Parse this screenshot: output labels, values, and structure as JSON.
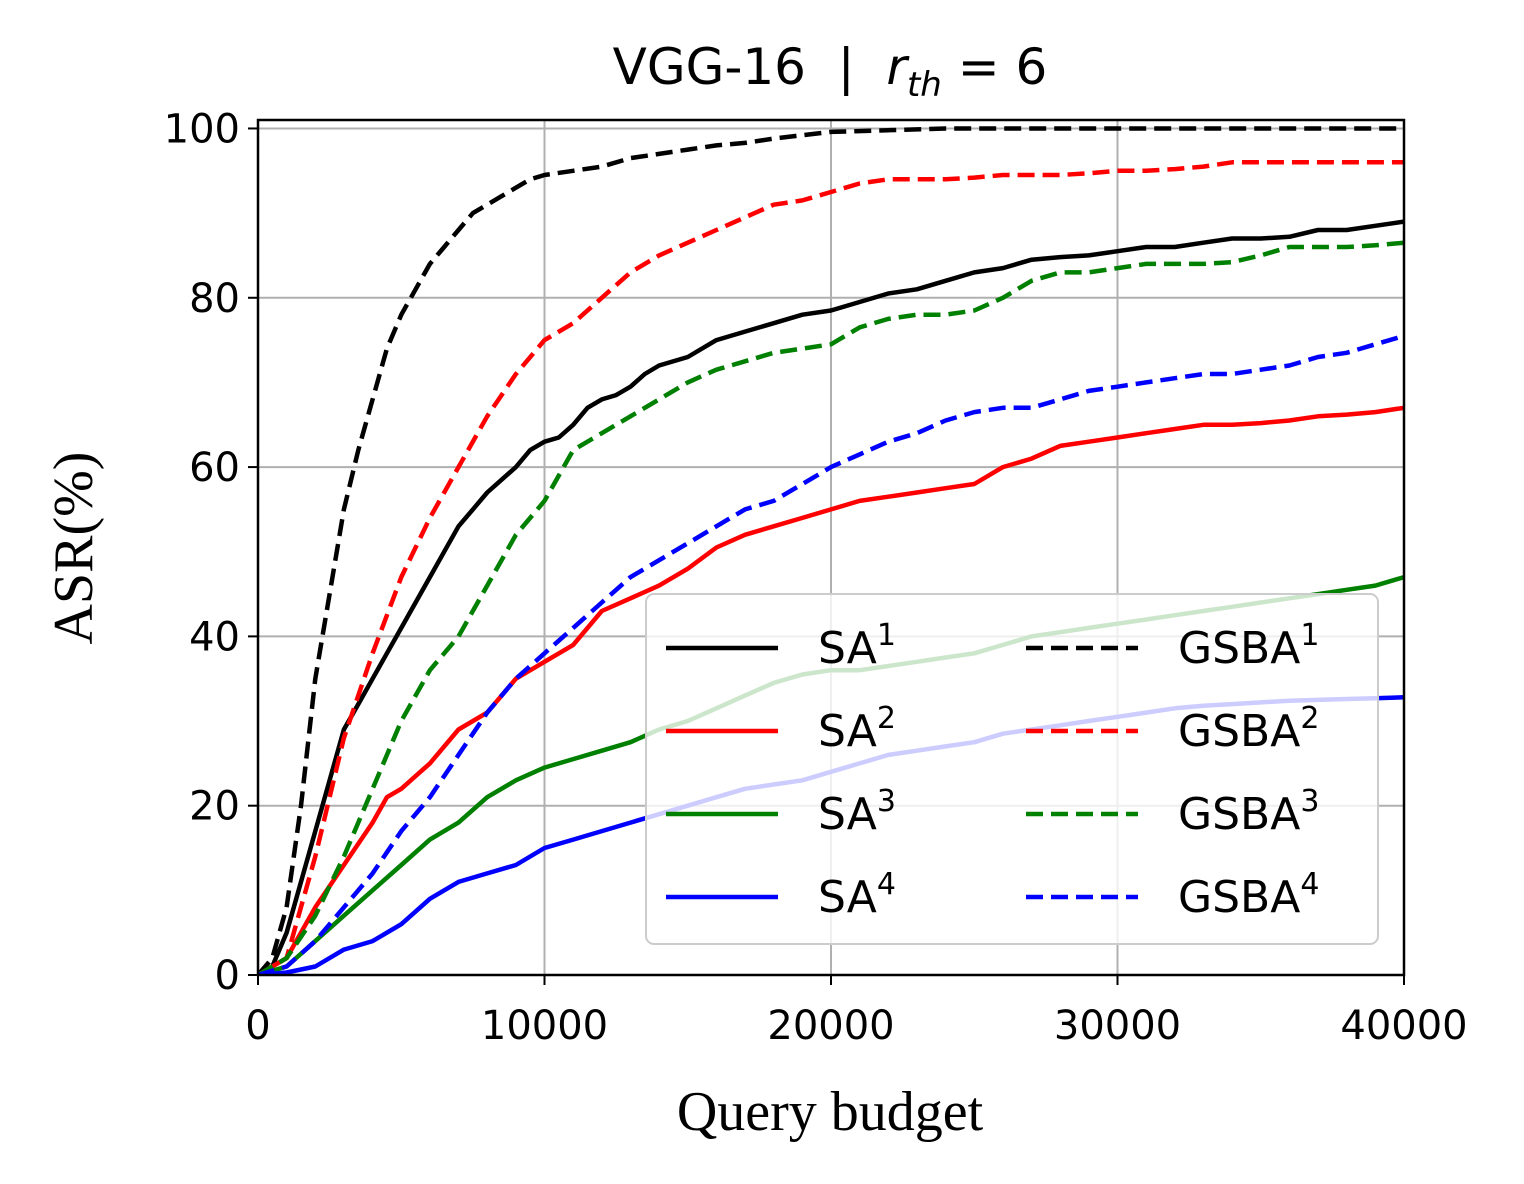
{
  "chart_data": {
    "type": "line",
    "title_main": "VGG-16  |  ",
    "title_var": "r",
    "title_sub": "th",
    "title_eq": " = 6",
    "xlabel": "Query budget",
    "ylabel": "ASR(%)",
    "xlim": [
      0,
      40000
    ],
    "ylim": [
      0,
      101
    ],
    "xticks": [
      0,
      10000,
      20000,
      30000,
      40000
    ],
    "xtick_labels": [
      "0",
      "10000",
      "20000",
      "30000",
      "40000"
    ],
    "yticks": [
      0,
      20,
      40,
      60,
      80,
      100
    ],
    "ytick_labels": [
      "0",
      "20",
      "40",
      "60",
      "80",
      "100"
    ],
    "grid": true,
    "legend_position": "lower-right",
    "series": [
      {
        "name": "SA",
        "sup": "1",
        "color": "#000000",
        "dash": "solid",
        "x": [
          0,
          500,
          1000,
          1500,
          2000,
          2500,
          3000,
          3500,
          4000,
          4500,
          5000,
          5500,
          6000,
          6500,
          7000,
          7500,
          8000,
          8500,
          9000,
          9500,
          10000,
          10500,
          11000,
          11500,
          12000,
          12500,
          13000,
          13500,
          14000,
          15000,
          16000,
          17000,
          18000,
          19000,
          20000,
          21000,
          22000,
          23000,
          24000,
          25000,
          26000,
          27000,
          28000,
          29000,
          30000,
          31000,
          32000,
          33000,
          34000,
          35000,
          36000,
          37000,
          38000,
          39000,
          40000
        ],
        "y": [
          0,
          1,
          5,
          11,
          17,
          23,
          29,
          32,
          35,
          38,
          41,
          44,
          47,
          50,
          53,
          55,
          57,
          58.5,
          60,
          62,
          63,
          63.5,
          65,
          67,
          68,
          68.5,
          69.5,
          71,
          72,
          73,
          75,
          76,
          77,
          78,
          78.5,
          79.5,
          80.5,
          81,
          82,
          83,
          83.5,
          84.5,
          84.8,
          85,
          85.5,
          86,
          86,
          86.5,
          87,
          87,
          87.2,
          88,
          88,
          88.5,
          89
        ]
      },
      {
        "name": "SA",
        "sup": "2",
        "color": "#ff0000",
        "dash": "solid",
        "x": [
          0,
          1000,
          2000,
          3000,
          4000,
          4500,
          5000,
          5500,
          6000,
          7000,
          8000,
          9000,
          10000,
          11000,
          12000,
          13000,
          14000,
          15000,
          16000,
          17000,
          18000,
          19000,
          20000,
          21000,
          22000,
          23000,
          24000,
          25000,
          26000,
          27000,
          28000,
          29000,
          30000,
          31000,
          32000,
          33000,
          34000,
          35000,
          36000,
          37000,
          38000,
          39000,
          40000
        ],
        "y": [
          0,
          2,
          8,
          13,
          18,
          21,
          22,
          23.5,
          25,
          29,
          31,
          35,
          37,
          39,
          43,
          44.5,
          46,
          48,
          50.5,
          52,
          53,
          54,
          55,
          56,
          56.5,
          57,
          57.5,
          58,
          60,
          61,
          62.5,
          63,
          63.5,
          64,
          64.5,
          65,
          65,
          65.2,
          65.5,
          66,
          66.2,
          66.5,
          67
        ]
      },
      {
        "name": "SA",
        "sup": "3",
        "color": "#008000",
        "dash": "solid",
        "x": [
          0,
          1000,
          2000,
          3000,
          4000,
          5000,
          6000,
          7000,
          8000,
          9000,
          10000,
          11000,
          12000,
          13000,
          14000,
          15000,
          16000,
          17000,
          18000,
          19000,
          20000,
          21000,
          22000,
          23000,
          24000,
          25000,
          26000,
          27000,
          28000,
          29000,
          30000,
          31000,
          32000,
          33000,
          34000,
          35000,
          36000,
          37000,
          38000,
          39000,
          40000
        ],
        "y": [
          0,
          1,
          4,
          7,
          10,
          13,
          16,
          18,
          21,
          23,
          24.5,
          25.5,
          26.5,
          27.5,
          29,
          30,
          31.5,
          33,
          34.5,
          35.5,
          36,
          36,
          36.5,
          37,
          37.5,
          38,
          39,
          40,
          40.5,
          41,
          41.5,
          42,
          42.5,
          43,
          43.5,
          44,
          44.5,
          45,
          45.5,
          46,
          47
        ]
      },
      {
        "name": "SA",
        "sup": "4",
        "color": "#0000ff",
        "dash": "solid",
        "x": [
          0,
          1000,
          2000,
          3000,
          4000,
          5000,
          6000,
          7000,
          8000,
          9000,
          10000,
          11000,
          12000,
          13000,
          14000,
          15000,
          16000,
          17000,
          18000,
          19000,
          20000,
          21000,
          22000,
          23000,
          24000,
          25000,
          26000,
          27000,
          28000,
          29000,
          30000,
          31000,
          32000,
          33000,
          34000,
          35000,
          36000,
          37000,
          38000,
          39000,
          40000
        ],
        "y": [
          0,
          0.3,
          1,
          3,
          4,
          6,
          9,
          11,
          12,
          13,
          15,
          16,
          17,
          18,
          19,
          20,
          21,
          22,
          22.5,
          23,
          24,
          25,
          26,
          26.5,
          27,
          27.5,
          28.5,
          29,
          29.5,
          30,
          30.5,
          31,
          31.5,
          31.8,
          32,
          32.2,
          32.4,
          32.5,
          32.6,
          32.7,
          32.8
        ]
      },
      {
        "name": "GSBA",
        "sup": "1",
        "color": "#000000",
        "dash": "dashed",
        "x": [
          0,
          500,
          1000,
          1500,
          2000,
          2500,
          3000,
          3500,
          4000,
          4500,
          5000,
          5500,
          6000,
          6500,
          7000,
          7500,
          8000,
          8500,
          9000,
          9500,
          10000,
          11000,
          12000,
          13000,
          14000,
          15000,
          16000,
          17000,
          18000,
          19000,
          20000,
          22000,
          24000,
          26000,
          28000,
          30000,
          32000,
          34000,
          36000,
          38000,
          40000
        ],
        "y": [
          0,
          2,
          8,
          20,
          35,
          45,
          55,
          62,
          68,
          74,
          78,
          81,
          84,
          86,
          88,
          90,
          91,
          92,
          93,
          94,
          94.5,
          95,
          95.5,
          96.5,
          97,
          97.5,
          98,
          98.3,
          98.8,
          99.2,
          99.6,
          99.8,
          100,
          100,
          100,
          100,
          100,
          100,
          100,
          100,
          100
        ]
      },
      {
        "name": "GSBA",
        "sup": "2",
        "color": "#ff0000",
        "dash": "dashed",
        "x": [
          0,
          1000,
          2000,
          3000,
          4000,
          5000,
          6000,
          7000,
          8000,
          9000,
          10000,
          11000,
          12000,
          13000,
          14000,
          15000,
          16000,
          17000,
          18000,
          19000,
          20000,
          21000,
          22000,
          23000,
          24000,
          25000,
          26000,
          27000,
          28000,
          29000,
          30000,
          31000,
          32000,
          33000,
          34000,
          35000,
          36000,
          37000,
          38000,
          39000,
          40000
        ],
        "y": [
          0,
          2,
          14,
          28,
          38,
          47,
          54,
          60,
          66,
          71,
          75,
          77,
          80,
          83,
          85,
          86.5,
          88,
          89.5,
          91,
          91.5,
          92.5,
          93.5,
          94,
          94,
          94,
          94.2,
          94.5,
          94.5,
          94.5,
          94.7,
          95,
          95,
          95.2,
          95.5,
          96,
          96,
          96,
          96,
          96,
          96,
          96
        ]
      },
      {
        "name": "GSBA",
        "sup": "3",
        "color": "#008000",
        "dash": "dashed",
        "x": [
          0,
          1000,
          2000,
          3000,
          4000,
          5000,
          6000,
          7000,
          8000,
          9000,
          10000,
          11000,
          12000,
          13000,
          14000,
          15000,
          16000,
          17000,
          18000,
          19000,
          20000,
          21000,
          22000,
          23000,
          24000,
          25000,
          26000,
          27000,
          28000,
          29000,
          30000,
          31000,
          32000,
          33000,
          34000,
          35000,
          36000,
          37000,
          38000,
          39000,
          40000
        ],
        "y": [
          0,
          2,
          7,
          14,
          22,
          30,
          36,
          40,
          46,
          52,
          56,
          62,
          64,
          66,
          68,
          70,
          71.5,
          72.5,
          73.5,
          74,
          74.5,
          76.5,
          77.5,
          78,
          78,
          78.5,
          80,
          82,
          83,
          83,
          83.5,
          84,
          84,
          84,
          84.2,
          85,
          86,
          86,
          86,
          86.2,
          86.5
        ]
      },
      {
        "name": "GSBA",
        "sup": "4",
        "color": "#0000ff",
        "dash": "dashed",
        "x": [
          0,
          1000,
          2000,
          3000,
          4000,
          5000,
          6000,
          7000,
          8000,
          9000,
          10000,
          11000,
          12000,
          13000,
          14000,
          15000,
          16000,
          17000,
          18000,
          19000,
          20000,
          21000,
          22000,
          23000,
          24000,
          25000,
          26000,
          27000,
          28000,
          29000,
          30000,
          31000,
          32000,
          33000,
          34000,
          35000,
          36000,
          37000,
          38000,
          39000,
          40000
        ],
        "y": [
          0,
          1,
          4,
          8,
          12,
          17,
          21,
          26,
          31,
          35,
          38,
          41,
          44,
          47,
          49,
          51,
          53,
          55,
          56,
          58,
          60,
          61.5,
          63,
          64,
          65.5,
          66.5,
          67,
          67,
          68,
          69,
          69.5,
          70,
          70.5,
          71,
          71,
          71.5,
          72,
          73,
          73.5,
          74.5,
          75.5
        ]
      }
    ]
  }
}
